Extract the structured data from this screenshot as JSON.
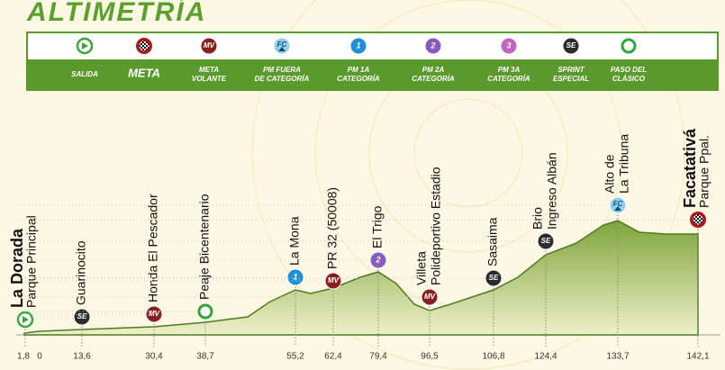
{
  "title": "ALTIMETRÍA",
  "legend": [
    {
      "icon": "start",
      "label": [
        "SALIDA"
      ]
    },
    {
      "icon": "finish",
      "label": [
        "META"
      ]
    },
    {
      "icon": "mv",
      "icon_text": "MV",
      "label": [
        "META",
        "VOLANTE"
      ]
    },
    {
      "icon": "fc",
      "icon_text": "FC",
      "label": [
        "PM FUERA",
        "DE CATEGORÍA"
      ]
    },
    {
      "icon": "c1",
      "icon_text": "1",
      "label": [
        "PM 1A",
        "CATEGORÍA"
      ]
    },
    {
      "icon": "c2",
      "icon_text": "2",
      "label": [
        "PM 2A",
        "CATEGORÍA"
      ]
    },
    {
      "icon": "c3",
      "icon_text": "3",
      "label": [
        "PM 3A",
        "CATEGORÍA"
      ]
    },
    {
      "icon": "se",
      "icon_text": "SE",
      "label": [
        "SPRINT",
        "ESPECIAL"
      ]
    },
    {
      "icon": "pass",
      "label": [
        "PASO DEL",
        "CLÁSICO"
      ]
    }
  ],
  "neutral_km": "1,8",
  "points": [
    {
      "km": "0",
      "name": [
        "La Dorada",
        "Parque Principal"
      ],
      "icon": "start"
    },
    {
      "km": "13,6",
      "name": [
        "Guarinocito"
      ],
      "icon": "se",
      "icon_text": "SE"
    },
    {
      "km": "30,4",
      "name": [
        "Honda El Pescador"
      ],
      "icon": "mv",
      "icon_text": "MV"
    },
    {
      "km": "38,7",
      "name": [
        "Peaje Bicentenario"
      ],
      "icon": "pass"
    },
    {
      "km": "55,2",
      "name": [
        "La Mona"
      ],
      "icon": "c1",
      "icon_text": "1"
    },
    {
      "km": "62,4",
      "name": [
        "PR 32 (50008)"
      ],
      "icon": "mv",
      "icon_text": "MV"
    },
    {
      "km": "79,4",
      "name": [
        "El Trigo"
      ],
      "icon": "c2",
      "icon_text": "2"
    },
    {
      "km": "96,5",
      "name": [
        "Villeta",
        "Polideportivo Estadio"
      ],
      "icon": "mv",
      "icon_text": "MV"
    },
    {
      "km": "106,8",
      "name": [
        "Sasaima"
      ],
      "icon": "se",
      "icon_text": "SE"
    },
    {
      "km": "124,4",
      "name": [
        "Brio",
        "Ingreso Albán"
      ],
      "icon": "se",
      "icon_text": "SE"
    },
    {
      "km": "133,7",
      "name": [
        "Alto de",
        "La Tribuna"
      ],
      "icon": "fc",
      "icon_text": "FC"
    },
    {
      "km": "142,1",
      "name": [
        "Facatativá",
        "Parque Ppal."
      ],
      "icon": "finish"
    }
  ]
}
